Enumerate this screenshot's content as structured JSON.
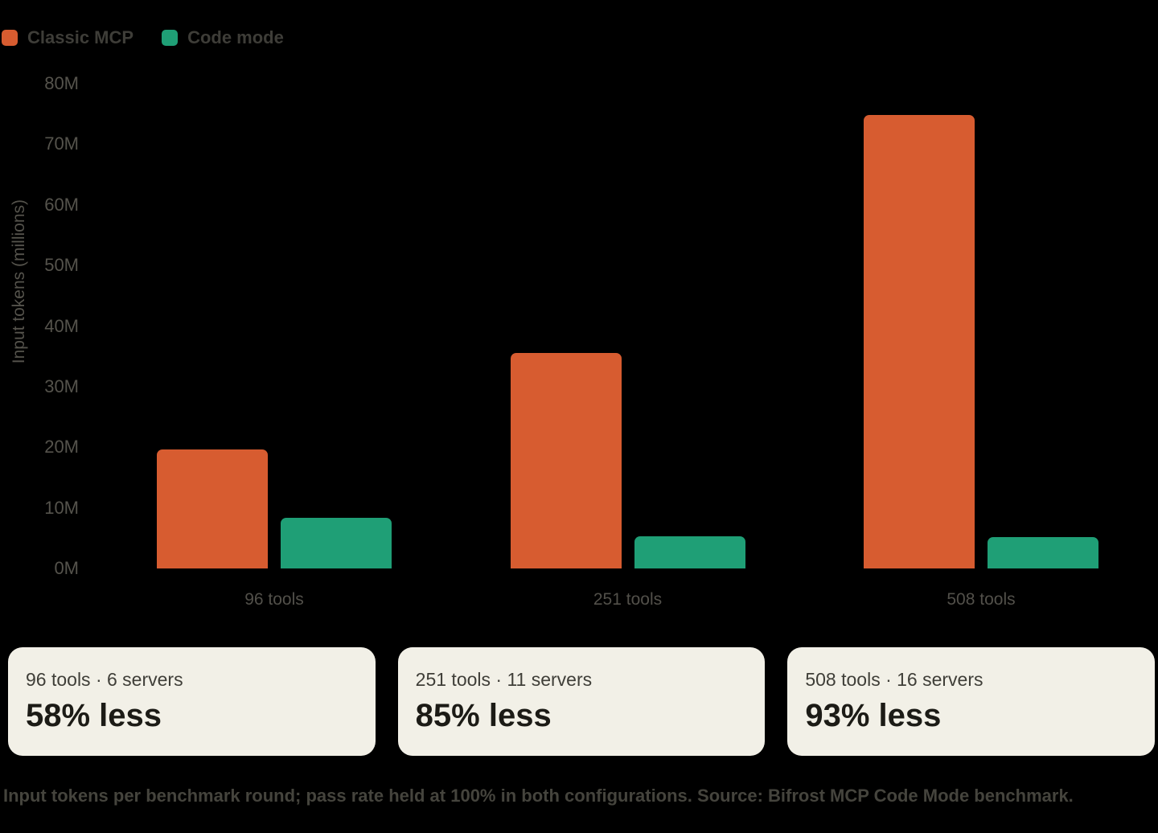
{
  "chart_data": {
    "type": "bar",
    "title": "",
    "xlabel": "",
    "ylabel": "Input tokens (millions)",
    "categories": [
      "96 tools",
      "251 tools",
      "508 tools"
    ],
    "series": [
      {
        "name": "Classic MCP",
        "color": "#D75C30",
        "values": [
          19.7,
          35.5,
          74.8
        ]
      },
      {
        "name": "Code mode",
        "color": "#1F9F76",
        "values": [
          8.3,
          5.3,
          5.2
        ]
      }
    ],
    "ylim": [
      0,
      80
    ],
    "yticks": [
      "0M",
      "10M",
      "20M",
      "30M",
      "40M",
      "50M",
      "60M",
      "70M",
      "80M"
    ],
    "unit": "millions of tokens",
    "grid": false,
    "legend_position": "top-left"
  },
  "cards": [
    {
      "subtitle": "96 tools · 6 servers",
      "headline": "58% less"
    },
    {
      "subtitle": "251 tools · 11 servers",
      "headline": "85% less"
    },
    {
      "subtitle": "508 tools · 16 servers",
      "headline": "93% less"
    }
  ],
  "caption": "Input tokens per benchmark round; pass rate held at 100% in both configurations. Source: Bifrost MCP Code Mode benchmark.",
  "colors": {
    "background": "#000000",
    "classic_mcp": "#D75C30",
    "code_mode": "#1F9F76",
    "card_background": "#F2F0E7",
    "axis_text": "#55534C",
    "legend_text": "#3E3D38",
    "caption_text": "#45443D",
    "card_subtitle_text": "#3F3E38",
    "card_headline_text": "#1C1B16"
  }
}
